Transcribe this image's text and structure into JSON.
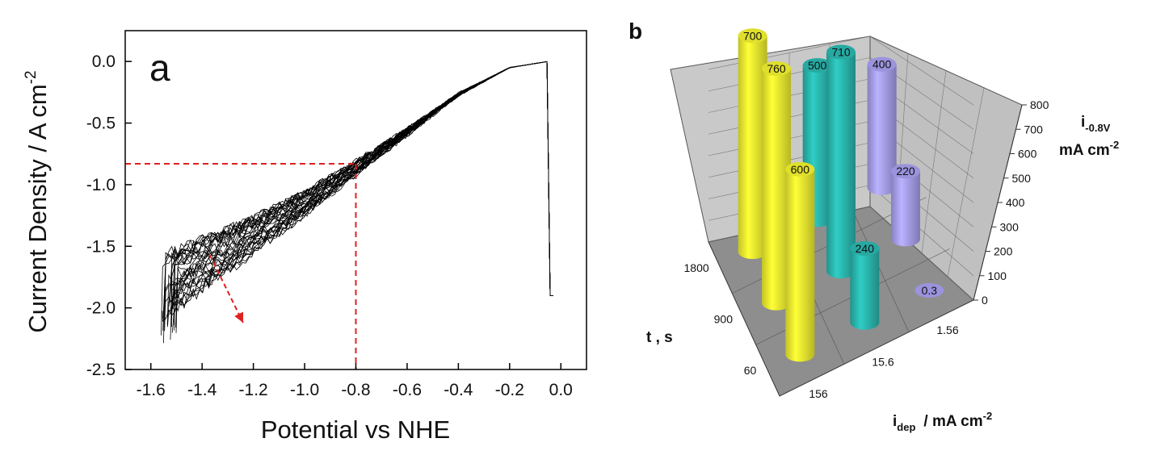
{
  "chart_data": [
    {
      "panel": "a",
      "type": "line",
      "xlabel": "Potential vs NHE",
      "ylabel": "Current Density / A cm",
      "ylabel_sup": "-2",
      "xlim": [
        -1.7,
        0.1
      ],
      "ylim": [
        -2.5,
        0.25
      ],
      "xticks": [
        "-1.6",
        "-1.4",
        "-1.2",
        "-1.0",
        "-0.8",
        "-0.6",
        "-0.4",
        "-0.2",
        "0.0"
      ],
      "yticks": [
        "0.0",
        "-0.5",
        "-1.0",
        "-1.5",
        "-2.0",
        "-2.5"
      ],
      "xtick_values": [
        -1.6,
        -1.4,
        -1.2,
        -1.0,
        -0.8,
        -0.6,
        -0.4,
        -0.2,
        0.0
      ],
      "ytick_values": [
        0.0,
        -0.5,
        -1.0,
        -1.5,
        -2.0,
        -2.5
      ],
      "series_description": "bundle of ~30 noisy cathodic sweeps from 0 V to about -1.55 V",
      "mean_curve": {
        "x": [
          -0.05,
          -0.2,
          -0.4,
          -0.6,
          -0.8,
          -1.0,
          -1.2,
          -1.4,
          -1.55
        ],
        "y": [
          0.0,
          -0.05,
          -0.27,
          -0.58,
          -0.88,
          -1.18,
          -1.45,
          -1.7,
          -1.9
        ]
      },
      "reference_lines": {
        "x": -0.8,
        "y": -0.83,
        "color": "#e02020"
      },
      "arrow": {
        "from": [
          -1.37,
          -1.57
        ],
        "to": [
          -1.24,
          -2.12
        ],
        "color": "#e02020"
      },
      "trace_color": "#000000"
    },
    {
      "panel": "b",
      "type": "bar3d",
      "zlabel": "i",
      "zlabel_sub": "-0.8V",
      "zlabel_unit": "mA cm",
      "zlabel_unit_sup": "-2",
      "zlim": [
        0,
        800
      ],
      "zticks": [
        "0",
        "100",
        "200",
        "300",
        "400",
        "500",
        "600",
        "700",
        "800"
      ],
      "ztick_values": [
        0,
        100,
        200,
        300,
        400,
        500,
        600,
        700,
        800
      ],
      "t_axis_label": "t , s",
      "t_ticks": [
        "1800",
        "900",
        "60"
      ],
      "idep_axis_label": "i",
      "idep_axis_sub": "dep",
      "idep_axis_unit": "/ mA cm",
      "idep_axis_sup": "-2",
      "idep_ticks": [
        "156",
        "15.6",
        "1.56"
      ],
      "bars": [
        {
          "i_dep": "156",
          "t": "1800",
          "value": 700,
          "label": "700",
          "color": "#f2f230"
        },
        {
          "i_dep": "156",
          "t": "900",
          "value": 760,
          "label": "760",
          "color": "#f2f230"
        },
        {
          "i_dep": "156",
          "t": "60",
          "value": 600,
          "label": "600",
          "color": "#f2f230"
        },
        {
          "i_dep": "15.6",
          "t": "1800",
          "value": 500,
          "label": "500",
          "color": "#2ab8b0"
        },
        {
          "i_dep": "15.6",
          "t": "900",
          "value": 710,
          "label": "710",
          "color": "#2ab8b0"
        },
        {
          "i_dep": "15.6",
          "t": "60",
          "value": 240,
          "label": "240",
          "color": "#2ab8b0"
        },
        {
          "i_dep": "1.56",
          "t": "1800",
          "value": 400,
          "label": "400",
          "color": "#a8a0f0"
        },
        {
          "i_dep": "1.56",
          "t": "900",
          "value": 220,
          "label": "220",
          "color": "#a8a0f0"
        },
        {
          "i_dep": "1.56",
          "t": "60",
          "value": 0.3,
          "label": "0.3",
          "color": "#a8a0f0"
        }
      ]
    }
  ]
}
